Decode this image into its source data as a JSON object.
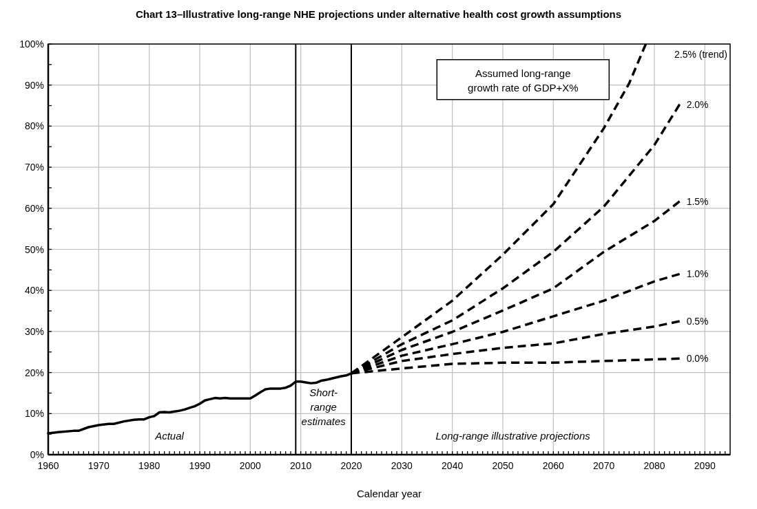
{
  "chart_data": {
    "type": "line",
    "title": "Chart 13–Illustrative long-range NHE projections under alternative health cost growth assumptions",
    "xlabel": "Calendar year",
    "xlim": [
      1960,
      2095
    ],
    "xticks": [
      1960,
      {
        "value": 1961,
        "label": null
      },
      {
        "value": 1962,
        "label": null
      },
      {
        "value": 1963,
        "label": null
      },
      {
        "value": 1964,
        "label": null
      },
      {
        "value": 1965,
        "label": null
      },
      {
        "value": 1966,
        "label": null
      },
      {
        "value": 1967,
        "label": null
      },
      {
        "value": 1968,
        "label": null
      },
      {
        "value": 1969,
        "label": null
      },
      1970,
      {
        "value": 1971,
        "label": null
      },
      {
        "value": 1972,
        "label": null
      },
      {
        "value": 1973,
        "label": null
      },
      {
        "value": 1974,
        "label": null
      },
      {
        "value": 1975,
        "label": null
      },
      {
        "value": 1976,
        "label": null
      },
      {
        "value": 1977,
        "label": null
      },
      {
        "value": 1978,
        "label": null
      },
      {
        "value": 1979,
        "label": null
      },
      1980,
      {
        "value": 1981,
        "label": null
      },
      {
        "value": 1982,
        "label": null
      },
      {
        "value": 1983,
        "label": null
      },
      {
        "value": 1984,
        "label": null
      },
      {
        "value": 1985,
        "label": null
      },
      {
        "value": 1986,
        "label": null
      },
      {
        "value": 1987,
        "label": null
      },
      {
        "value": 1988,
        "label": null
      },
      {
        "value": 1989,
        "label": null
      },
      1990,
      {
        "value": 1991,
        "label": null
      },
      {
        "value": 1992,
        "label": null
      },
      {
        "value": 1993,
        "label": null
      },
      {
        "value": 1994,
        "label": null
      },
      {
        "value": 1995,
        "label": null
      },
      {
        "value": 1996,
        "label": null
      },
      {
        "value": 1997,
        "label": null
      },
      {
        "value": 1998,
        "label": null
      },
      {
        "value": 1999,
        "label": null
      },
      2000,
      {
        "value": 2001,
        "label": null
      },
      {
        "value": 2002,
        "label": null
      },
      {
        "value": 2003,
        "label": null
      },
      {
        "value": 2004,
        "label": null
      },
      {
        "value": 2005,
        "label": null
      },
      {
        "value": 2006,
        "label": null
      },
      {
        "value": 2007,
        "label": null
      },
      {
        "value": 2008,
        "label": null
      },
      {
        "value": 2009,
        "label": null
      },
      2010,
      {
        "value": 2011,
        "label": null
      },
      {
        "value": 2012,
        "label": null
      },
      {
        "value": 2013,
        "label": null
      },
      {
        "value": 2014,
        "label": null
      },
      {
        "value": 2015,
        "label": null
      },
      {
        "value": 2016,
        "label": null
      },
      {
        "value": 2017,
        "label": null
      },
      {
        "value": 2018,
        "label": null
      },
      {
        "value": 2019,
        "label": null
      },
      2020,
      {
        "value": 2021,
        "label": null
      },
      {
        "value": 2022,
        "label": null
      },
      {
        "value": 2023,
        "label": null
      },
      {
        "value": 2024,
        "label": null
      },
      {
        "value": 2025,
        "label": null
      },
      {
        "value": 2026,
        "label": null
      },
      {
        "value": 2027,
        "label": null
      },
      {
        "value": 2028,
        "label": null
      },
      {
        "value": 2029,
        "label": null
      },
      2030,
      {
        "value": 2031,
        "label": null
      },
      {
        "value": 2032,
        "label": null
      },
      {
        "value": 2033,
        "label": null
      },
      {
        "value": 2034,
        "label": null
      },
      {
        "value": 2035,
        "label": null
      },
      {
        "value": 2036,
        "label": null
      },
      {
        "value": 2037,
        "label": null
      },
      {
        "value": 2038,
        "label": null
      },
      {
        "value": 2039,
        "label": null
      },
      2040,
      {
        "value": 2041,
        "label": null
      },
      {
        "value": 2042,
        "label": null
      },
      {
        "value": 2043,
        "label": null
      },
      {
        "value": 2044,
        "label": null
      },
      {
        "value": 2045,
        "label": null
      },
      {
        "value": 2046,
        "label": null
      },
      {
        "value": 2047,
        "label": null
      },
      {
        "value": 2048,
        "label": null
      },
      {
        "value": 2049,
        "label": null
      },
      2050,
      {
        "value": 2051,
        "label": null
      },
      {
        "value": 2052,
        "label": null
      },
      {
        "value": 2053,
        "label": null
      },
      {
        "value": 2054,
        "label": null
      },
      {
        "value": 2055,
        "label": null
      },
      {
        "value": 2056,
        "label": null
      },
      {
        "value": 2057,
        "label": null
      },
      {
        "value": 2058,
        "label": null
      },
      {
        "value": 2059,
        "label": null
      },
      2060,
      {
        "value": 2061,
        "label": null
      },
      {
        "value": 2062,
        "label": null
      },
      {
        "value": 2063,
        "label": null
      },
      {
        "value": 2064,
        "label": null
      },
      {
        "value": 2065,
        "label": null
      },
      {
        "value": 2066,
        "label": null
      },
      {
        "value": 2067,
        "label": null
      },
      {
        "value": 2068,
        "label": null
      },
      {
        "value": 2069,
        "label": null
      },
      2070,
      {
        "value": 2071,
        "label": null
      },
      {
        "value": 2072,
        "label": null
      },
      {
        "value": 2073,
        "label": null
      },
      {
        "value": 2074,
        "label": null
      },
      {
        "value": 2075,
        "label": null
      },
      {
        "value": 2076,
        "label": null
      },
      {
        "value": 2077,
        "label": null
      },
      {
        "value": 2078,
        "label": null
      },
      {
        "value": 2079,
        "label": null
      },
      2080,
      {
        "value": 2081,
        "label": null
      },
      {
        "value": 2082,
        "label": null
      },
      {
        "value": 2083,
        "label": null
      },
      {
        "value": 2084,
        "label": null
      },
      {
        "value": 2085,
        "label": null
      },
      {
        "value": 2086,
        "label": null
      },
      {
        "value": 2087,
        "label": null
      },
      {
        "value": 2088,
        "label": null
      },
      {
        "value": 2089,
        "label": null
      },
      2090,
      {
        "value": 2091,
        "label": null
      },
      {
        "value": 2092,
        "label": null
      },
      {
        "value": 2093,
        "label": null
      },
      {
        "value": 2094,
        "label": null
      }
    ],
    "ylim": [
      0,
      100
    ],
    "yticks": [
      {
        "value": 0,
        "label": "0%"
      },
      {
        "value": 5,
        "label": null
      },
      {
        "value": 10,
        "label": "10%"
      },
      {
        "value": 15,
        "label": null
      },
      {
        "value": 20,
        "label": "20%"
      },
      {
        "value": 25,
        "label": null
      },
      {
        "value": 30,
        "label": "30%"
      },
      {
        "value": 35,
        "label": null
      },
      {
        "value": 40,
        "label": "40%"
      },
      {
        "value": 45,
        "label": null
      },
      {
        "value": 50,
        "label": "50%"
      },
      {
        "value": 55,
        "label": null
      },
      {
        "value": 60,
        "label": "60%"
      },
      {
        "value": 65,
        "label": null
      },
      {
        "value": 70,
        "label": "70%"
      },
      {
        "value": 75,
        "label": null
      },
      {
        "value": 80,
        "label": "80%"
      },
      {
        "value": 85,
        "label": null
      },
      {
        "value": 90,
        "label": "90%"
      },
      {
        "value": 95,
        "label": null
      },
      {
        "value": 100,
        "label": "100%"
      }
    ],
    "grid": true,
    "series": [
      {
        "color": "#000000",
        "line_style": "solid",
        "x": [
          1960,
          1962,
          1965,
          1966,
          1968,
          1970,
          1972,
          1973,
          1975,
          1977,
          1978,
          1979,
          1980,
          1981,
          1982,
          1983,
          1984,
          1985,
          1986,
          1987,
          1988,
          1989,
          1990,
          1991,
          1992,
          1993,
          1994,
          1995,
          1996,
          1997,
          1998,
          1999,
          2000,
          2001,
          2002,
          2003,
          2004,
          2005,
          2006,
          2007,
          2008,
          2009,
          2010,
          2011,
          2012,
          2013,
          2014,
          2015,
          2016,
          2017,
          2018,
          2019,
          2020
        ],
        "values": [
          5.2,
          5.5,
          5.8,
          5.8,
          6.7,
          7.2,
          7.5,
          7.5,
          8.1,
          8.5,
          8.6,
          8.6,
          9.1,
          9.4,
          10.3,
          10.4,
          10.3,
          10.5,
          10.7,
          11.0,
          11.4,
          11.8,
          12.4,
          13.2,
          13.5,
          13.8,
          13.7,
          13.8,
          13.7,
          13.7,
          13.7,
          13.7,
          13.7,
          14.4,
          15.2,
          15.9,
          16.1,
          16.1,
          16.1,
          16.3,
          16.8,
          17.8,
          17.8,
          17.6,
          17.4,
          17.5,
          18.0,
          18.2,
          18.5,
          18.8,
          19.1,
          19.3,
          19.8
        ]
      },
      {
        "name": "2.5% (trend)",
        "color": "#000000",
        "line_style": "dashed",
        "x": [
          2020,
          2030,
          2040,
          2050,
          2060,
          2070,
          2075,
          2078.3
        ],
        "values": [
          19.8,
          28.6,
          37.5,
          48.7,
          61.0,
          79.5,
          90.4,
          100
        ]
      },
      {
        "name": "2.0%",
        "color": "#000000",
        "line_style": "dashed",
        "x": [
          2020,
          2030,
          2040,
          2050,
          2060,
          2070,
          2080,
          2085
        ],
        "values": [
          19.8,
          26.9,
          32.7,
          40.5,
          49.4,
          60.4,
          75.4,
          85.3
        ]
      },
      {
        "name": "1.5%",
        "color": "#000000",
        "line_style": "dashed",
        "x": [
          2020,
          2030,
          2040,
          2050,
          2060,
          2070,
          2080,
          2085
        ],
        "values": [
          19.8,
          25.5,
          29.9,
          35.1,
          40.5,
          49.4,
          56.9,
          61.7
        ]
      },
      {
        "name": "1.0%",
        "color": "#000000",
        "line_style": "dashed",
        "x": [
          2020,
          2030,
          2040,
          2050,
          2060,
          2070,
          2080,
          2085
        ],
        "values": [
          19.8,
          24.1,
          26.9,
          29.9,
          33.7,
          37.5,
          42.2,
          44.0
        ]
      },
      {
        "name": "0.5%",
        "color": "#000000",
        "line_style": "dashed",
        "x": [
          2020,
          2030,
          2040,
          2050,
          2060,
          2070,
          2080,
          2085
        ],
        "values": [
          19.8,
          22.8,
          24.5,
          26.0,
          27.1,
          29.4,
          31.2,
          32.5
        ]
      },
      {
        "name": "0.0%",
        "color": "#000000",
        "line_style": "dashed",
        "x": [
          2020,
          2030,
          2040,
          2050,
          2060,
          2070,
          2080,
          2085
        ],
        "values": [
          19.8,
          21.0,
          22.1,
          22.4,
          22.4,
          22.8,
          23.2,
          23.4
        ]
      }
    ],
    "ref_lines": [
      {
        "axis": "x",
        "value": 2009,
        "color": "#000000"
      },
      {
        "axis": "x",
        "value": 2020,
        "color": "#000000"
      }
    ],
    "annotations": [
      "Assumed long-range growth rate of GDP+X%",
      "Actual",
      "Short-range estimates",
      "Long-range illustrative projections"
    ]
  }
}
